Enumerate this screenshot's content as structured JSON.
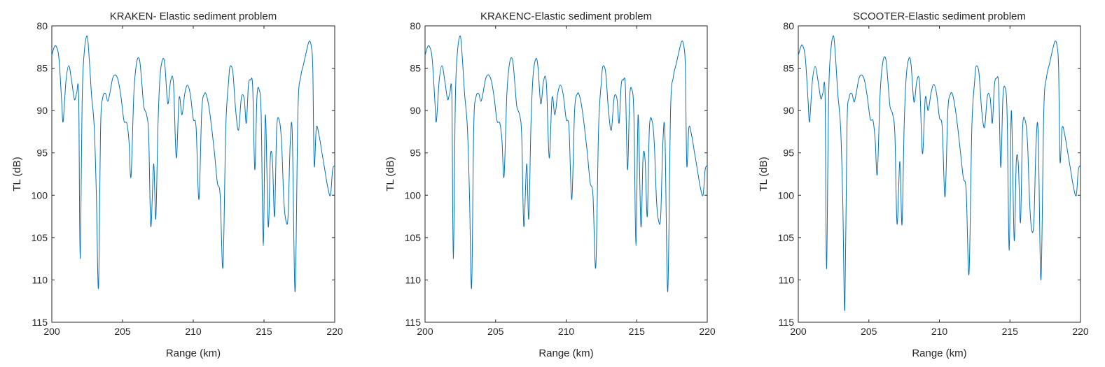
{
  "chart_data": [
    {
      "type": "line",
      "title": "KRAKEN- Elastic sediment problem",
      "xlabel": "Range (km)",
      "ylabel": "TL (dB)",
      "xlim": [
        200,
        220
      ],
      "ylim": [
        80,
        115
      ],
      "y_reversed": true,
      "grid": false,
      "line_color": "#0072BD",
      "xticks": [
        200,
        205,
        210,
        215,
        220
      ],
      "yticks": [
        80,
        85,
        90,
        95,
        100,
        105,
        110,
        115
      ],
      "series": [
        {
          "x": [
            200,
            200.15,
            200.3,
            200.5,
            200.7,
            200.8,
            201.0,
            201.2,
            201.4,
            201.6,
            201.75,
            201.9,
            202.0,
            202.15,
            202.3,
            202.5,
            202.65,
            202.8,
            203.0,
            203.15,
            203.3,
            203.45,
            203.6,
            203.8,
            203.95,
            204.1,
            204.3,
            204.5,
            204.7,
            204.9,
            205.1,
            205.3,
            205.45,
            205.6,
            205.8,
            206.0,
            206.2,
            206.35,
            206.5,
            206.7,
            206.85,
            207.0,
            207.2,
            207.35,
            207.5,
            207.65,
            207.85,
            208.0,
            208.2,
            208.4,
            208.6,
            208.8,
            209.0,
            209.2,
            209.4,
            209.6,
            209.8,
            210.0,
            210.2,
            210.4,
            210.6,
            210.8,
            210.95,
            211.1,
            211.3,
            211.5,
            211.7,
            211.9,
            212.1,
            212.3,
            212.5,
            212.6,
            212.8,
            213.0,
            213.2,
            213.4,
            213.6,
            213.75,
            213.9,
            214.05,
            214.2,
            214.35,
            214.5,
            214.65,
            214.8,
            214.95,
            215.1,
            215.3,
            215.45,
            215.6,
            215.75,
            215.9,
            216.1,
            216.25,
            216.4,
            216.55,
            216.7,
            216.85,
            217.0,
            217.2,
            217.4,
            217.6,
            217.8,
            218.0,
            218.2,
            218.35,
            218.45,
            218.55,
            218.7,
            218.9,
            219.1,
            219.3,
            219.5,
            219.7,
            219.85,
            220.0
          ],
          "values": [
            83.5,
            82.6,
            82.4,
            83.8,
            89.0,
            91.3,
            86.5,
            84.7,
            86.5,
            88.7,
            88.0,
            88.4,
            107.5,
            88.5,
            83.0,
            81.2,
            84.0,
            88.0,
            92.0,
            100.0,
            110.9,
            92.0,
            88.5,
            88.0,
            88.9,
            88.0,
            86.2,
            85.8,
            86.5,
            88.5,
            91.2,
            91.5,
            93.5,
            97.8,
            88.0,
            84.3,
            84.0,
            86.5,
            89.5,
            90.5,
            93.0,
            103.7,
            96.3,
            102.8,
            92.0,
            86.0,
            83.9,
            84.8,
            89.2,
            86.5,
            86.8,
            95.6,
            88.5,
            90.5,
            88.0,
            87.0,
            88.2,
            91.0,
            92.0,
            100.5,
            90.0,
            88.0,
            88.3,
            89.5,
            92.0,
            95.0,
            98.5,
            100.0,
            108.5,
            92.0,
            86.5,
            84.8,
            85.5,
            90.0,
            92.3,
            88.5,
            88.6,
            91.5,
            87.0,
            86.4,
            87.2,
            97.0,
            88.5,
            87.5,
            90.5,
            106.0,
            90.5,
            103.7,
            95.5,
            96.0,
            102.5,
            92.0,
            91.3,
            94.0,
            100.5,
            103.0,
            102.5,
            94.0,
            92.7,
            111.4,
            90.0,
            86.0,
            84.5,
            83.0,
            81.8,
            82.5,
            85.0,
            96.5,
            92.0,
            93.0,
            95.0,
            97.0,
            99.0,
            100.0,
            97.0,
            96.5
          ]
        }
      ]
    },
    {
      "type": "line",
      "title": "KRAKENC-Elastic sediment problem",
      "xlabel": "Range (km)",
      "ylabel": "TL (dB)",
      "xlim": [
        200,
        220
      ],
      "ylim": [
        80,
        115
      ],
      "y_reversed": true,
      "grid": false,
      "line_color": "#0072BD",
      "xticks": [
        200,
        205,
        210,
        215,
        220
      ],
      "yticks": [
        80,
        85,
        90,
        95,
        100,
        105,
        110,
        115
      ],
      "series": [
        {
          "x": [
            200,
            200.15,
            200.3,
            200.5,
            200.7,
            200.8,
            201.0,
            201.2,
            201.4,
            201.6,
            201.75,
            201.9,
            202.0,
            202.15,
            202.3,
            202.5,
            202.65,
            202.8,
            203.0,
            203.15,
            203.3,
            203.45,
            203.6,
            203.8,
            203.95,
            204.1,
            204.3,
            204.5,
            204.7,
            204.9,
            205.1,
            205.3,
            205.45,
            205.6,
            205.8,
            206.0,
            206.2,
            206.35,
            206.5,
            206.7,
            206.85,
            207.0,
            207.2,
            207.35,
            207.5,
            207.65,
            207.85,
            208.0,
            208.2,
            208.4,
            208.6,
            208.8,
            209.0,
            209.2,
            209.4,
            209.6,
            209.8,
            210.0,
            210.2,
            210.4,
            210.6,
            210.8,
            210.95,
            211.1,
            211.3,
            211.5,
            211.7,
            211.9,
            212.1,
            212.3,
            212.5,
            212.6,
            212.8,
            213.0,
            213.2,
            213.4,
            213.6,
            213.75,
            213.9,
            214.05,
            214.2,
            214.35,
            214.5,
            214.65,
            214.8,
            214.95,
            215.1,
            215.3,
            215.45,
            215.6,
            215.75,
            215.9,
            216.1,
            216.25,
            216.4,
            216.55,
            216.7,
            216.85,
            217.0,
            217.2,
            217.4,
            217.6,
            217.8,
            218.0,
            218.2,
            218.35,
            218.45,
            218.55,
            218.7,
            218.9,
            219.1,
            219.3,
            219.5,
            219.7,
            219.85,
            220.0
          ],
          "values": [
            83.5,
            82.6,
            82.4,
            83.8,
            89.0,
            91.3,
            86.5,
            84.7,
            86.5,
            88.7,
            88.0,
            88.4,
            107.5,
            88.5,
            83.0,
            81.2,
            84.0,
            88.0,
            92.0,
            100.0,
            110.9,
            92.0,
            88.5,
            88.0,
            88.9,
            88.0,
            86.2,
            85.8,
            86.5,
            88.5,
            91.2,
            91.5,
            93.5,
            97.8,
            88.0,
            84.3,
            84.0,
            86.5,
            89.5,
            90.5,
            93.0,
            103.7,
            96.3,
            102.8,
            92.0,
            86.0,
            83.9,
            84.8,
            89.2,
            86.5,
            86.8,
            95.6,
            88.5,
            90.5,
            88.0,
            87.0,
            88.2,
            91.0,
            92.0,
            100.5,
            90.0,
            88.0,
            88.3,
            89.5,
            92.0,
            95.0,
            98.5,
            100.0,
            108.5,
            92.0,
            86.5,
            84.8,
            85.5,
            90.0,
            92.3,
            88.5,
            88.6,
            91.5,
            87.0,
            86.4,
            87.2,
            97.0,
            88.5,
            87.5,
            90.5,
            106.0,
            90.5,
            103.7,
            95.5,
            96.0,
            102.5,
            92.0,
            91.3,
            94.0,
            100.5,
            103.0,
            102.5,
            94.0,
            92.7,
            111.4,
            90.0,
            86.0,
            84.5,
            83.0,
            81.8,
            82.5,
            85.0,
            96.5,
            92.0,
            93.0,
            95.0,
            97.0,
            99.0,
            100.0,
            97.0,
            96.5
          ]
        }
      ]
    },
    {
      "type": "line",
      "title": "SCOOTER-Elastic sediment problem",
      "xlabel": "Range (km)",
      "ylabel": "TL (dB)",
      "xlim": [
        200,
        220
      ],
      "ylim": [
        80,
        115
      ],
      "y_reversed": true,
      "grid": false,
      "line_color": "#0072BD",
      "xticks": [
        200,
        205,
        210,
        215,
        220
      ],
      "yticks": [
        80,
        85,
        90,
        95,
        100,
        105,
        110,
        115
      ],
      "series": [
        {
          "x": [
            200,
            200.15,
            200.3,
            200.5,
            200.7,
            200.8,
            201.0,
            201.2,
            201.4,
            201.6,
            201.75,
            201.9,
            202.0,
            202.15,
            202.3,
            202.5,
            202.65,
            202.8,
            203.0,
            203.15,
            203.3,
            203.45,
            203.6,
            203.8,
            203.95,
            204.1,
            204.3,
            204.5,
            204.7,
            204.9,
            205.1,
            205.3,
            205.45,
            205.6,
            205.8,
            206.0,
            206.2,
            206.35,
            206.5,
            206.7,
            206.85,
            207.0,
            207.2,
            207.35,
            207.5,
            207.65,
            207.85,
            208.0,
            208.2,
            208.4,
            208.6,
            208.8,
            209.0,
            209.2,
            209.4,
            209.6,
            209.8,
            210.0,
            210.2,
            210.4,
            210.6,
            210.8,
            210.95,
            211.1,
            211.3,
            211.5,
            211.7,
            211.9,
            212.1,
            212.3,
            212.5,
            212.6,
            212.8,
            213.0,
            213.2,
            213.4,
            213.6,
            213.75,
            213.9,
            214.05,
            214.2,
            214.35,
            214.5,
            214.65,
            214.8,
            214.95,
            215.1,
            215.3,
            215.45,
            215.6,
            215.75,
            215.9,
            216.1,
            216.25,
            216.4,
            216.55,
            216.7,
            216.85,
            217.0,
            217.2,
            217.4,
            217.6,
            217.8,
            218.0,
            218.2,
            218.35,
            218.45,
            218.55,
            218.7,
            218.9,
            219.1,
            219.3,
            219.5,
            219.7,
            219.85,
            220.0
          ],
          "values": [
            83.5,
            82.6,
            82.3,
            83.8,
            89.0,
            91.3,
            86.5,
            84.8,
            86.5,
            88.6,
            87.9,
            88.3,
            108.7,
            88.5,
            83.0,
            81.2,
            84.0,
            88.0,
            92.0,
            100.5,
            113.5,
            92.0,
            88.5,
            88.0,
            89.0,
            88.0,
            86.2,
            85.8,
            86.5,
            88.5,
            91.0,
            91.2,
            93.5,
            97.5,
            88.0,
            84.2,
            83.9,
            86.5,
            89.5,
            90.5,
            93.0,
            103.4,
            96.0,
            103.5,
            92.0,
            86.0,
            83.8,
            84.7,
            89.0,
            86.5,
            86.8,
            95.1,
            88.5,
            90.0,
            88.0,
            86.9,
            88.0,
            90.8,
            92.0,
            100.2,
            90.0,
            88.0,
            88.2,
            89.5,
            92.0,
            95.0,
            98.0,
            99.5,
            109.3,
            92.0,
            86.5,
            84.8,
            85.5,
            90.0,
            92.0,
            88.3,
            88.5,
            91.5,
            87.0,
            86.2,
            87.1,
            96.7,
            88.5,
            87.3,
            90.5,
            106.5,
            90.0,
            105.3,
            96.0,
            96.5,
            103.2,
            92.0,
            91.3,
            94.0,
            101.0,
            104.2,
            103.0,
            94.0,
            92.6,
            110.0,
            90.0,
            86.0,
            84.5,
            83.0,
            81.8,
            82.5,
            85.0,
            96.0,
            92.0,
            93.0,
            95.0,
            97.0,
            99.0,
            100.0,
            97.0,
            96.5
          ]
        }
      ]
    }
  ]
}
